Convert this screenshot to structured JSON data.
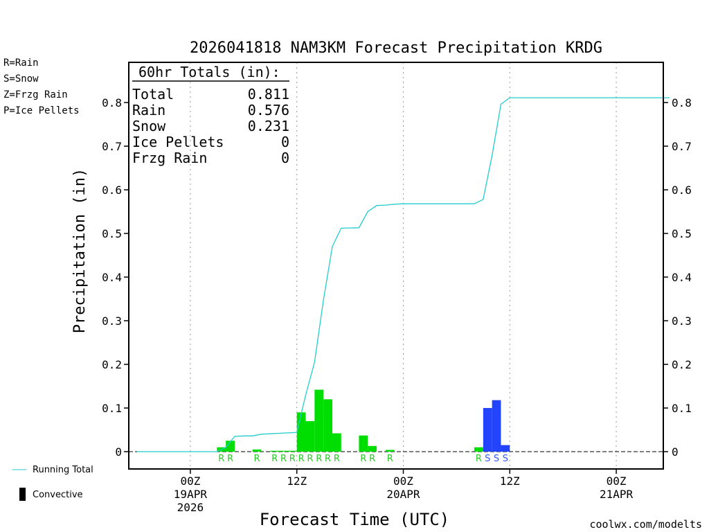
{
  "title": "2026041818 NAM3KM Forecast Precipitation KRDG",
  "ylabel": "Precipitation (in)",
  "xlabel": "Forecast Time (UTC)",
  "credit": "coolwx.com/modelts",
  "legend_types": [
    {
      "label": "R=Rain",
      "color": "#22cc22"
    },
    {
      "label": "S=Snow",
      "color": "#3355ff"
    },
    {
      "label": "Z=Frzg Rain",
      "color": "#ff8800"
    },
    {
      "label": "P=Ice Pellets",
      "color": "#ff2299"
    }
  ],
  "legend_bottom": {
    "running_total": "Running Total",
    "convective": "Convective"
  },
  "totals_box": {
    "heading": "60hr Totals (in):",
    "rows": [
      {
        "label": "Total",
        "value": "0.811"
      },
      {
        "label": "Rain",
        "value": "0.576"
      },
      {
        "label": "Snow",
        "value": "0.231"
      },
      {
        "label": "Ice Pellets",
        "value": "0"
      },
      {
        "label": "Frzg Rain",
        "value": "0"
      }
    ]
  },
  "colors": {
    "rain": "#00dd00",
    "snow": "#2244ff",
    "running_total": "#22cccc",
    "rain_letter": "#22cc22",
    "snow_letter": "#3355ff"
  },
  "chart_data": {
    "type": "bar",
    "x_unit": "forecast hour from 2026041818",
    "xlim": [
      0,
      60
    ],
    "ylim": [
      0,
      0.9
    ],
    "yticks": [
      0,
      0.1,
      0.2,
      0.3,
      0.4,
      0.5,
      0.6,
      0.7,
      0.8
    ],
    "ytick_labels": [
      "0",
      "0.1",
      "0.2",
      "0.3",
      "0.4",
      "0.5",
      "0.6",
      "0.7",
      "0.8"
    ],
    "x_ticks": [
      {
        "hour": 6,
        "lines": [
          "00Z",
          "19APR",
          "2026"
        ]
      },
      {
        "hour": 18,
        "lines": [
          "12Z"
        ]
      },
      {
        "hour": 30,
        "lines": [
          "00Z",
          "20APR"
        ]
      },
      {
        "hour": 42,
        "lines": [
          "12Z"
        ]
      },
      {
        "hour": 54,
        "lines": [
          "00Z",
          "21APR"
        ]
      }
    ],
    "grid": "vertical dotted",
    "hourly_precip": [
      {
        "hour": 10,
        "value": 0.01,
        "type": "R"
      },
      {
        "hour": 11,
        "value": 0.025,
        "type": "R"
      },
      {
        "hour": 14,
        "value": 0.005,
        "type": "R"
      },
      {
        "hour": 16,
        "value": 0.002,
        "type": "R"
      },
      {
        "hour": 17,
        "value": 0.002,
        "type": "R"
      },
      {
        "hour": 18,
        "value": 0.002,
        "type": "R"
      },
      {
        "hour": 19,
        "value": 0.09,
        "type": "R"
      },
      {
        "hour": 20,
        "value": 0.07,
        "type": "R"
      },
      {
        "hour": 21,
        "value": 0.142,
        "type": "R"
      },
      {
        "hour": 22,
        "value": 0.12,
        "type": "R"
      },
      {
        "hour": 23,
        "value": 0.042,
        "type": "R"
      },
      {
        "hour": 26,
        "value": 0.037,
        "type": "R"
      },
      {
        "hour": 27,
        "value": 0.013,
        "type": "R"
      },
      {
        "hour": 29,
        "value": 0.004,
        "type": "R"
      },
      {
        "hour": 39,
        "value": 0.01,
        "type": "R"
      },
      {
        "hour": 40,
        "value": 0.1,
        "type": "S"
      },
      {
        "hour": 41,
        "value": 0.118,
        "type": "S"
      },
      {
        "hour": 42,
        "value": 0.015,
        "type": "S"
      }
    ],
    "running_total": {
      "hours": [
        0,
        9,
        10,
        11,
        12,
        13,
        14,
        15,
        17,
        18,
        19,
        20,
        21,
        22,
        23,
        25,
        26,
        27,
        28,
        29,
        30,
        31,
        33,
        35,
        37,
        38,
        39,
        40,
        41,
        42,
        48,
        54,
        60
      ],
      "values": [
        0,
        0,
        0.01,
        0.035,
        0.036,
        0.036,
        0.04,
        0.041,
        0.043,
        0.044,
        0.13,
        0.205,
        0.347,
        0.47,
        0.512,
        0.513,
        0.55,
        0.564,
        0.565,
        0.567,
        0.568,
        0.568,
        0.568,
        0.568,
        0.568,
        0.568,
        0.578,
        0.678,
        0.796,
        0.811,
        0.811,
        0.811,
        0.811
      ]
    }
  }
}
